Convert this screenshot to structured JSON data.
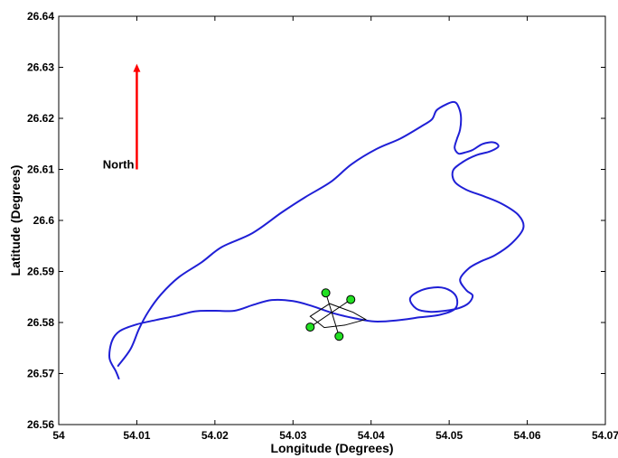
{
  "chart_data": {
    "type": "line",
    "title": "",
    "xlabel": "Longitude (Degrees)",
    "ylabel": "Latitude (Degrees)",
    "xlim": [
      54.0,
      54.07
    ],
    "ylim": [
      26.56,
      26.64
    ],
    "xticks": [
      54.0,
      54.01,
      54.02,
      54.03,
      54.04,
      54.05,
      54.06,
      54.07
    ],
    "yticks": [
      26.56,
      26.57,
      26.58,
      26.59,
      26.6,
      26.61,
      26.62,
      26.63,
      26.64
    ],
    "xtick_labels": [
      "54",
      "54.01",
      "54.02",
      "54.03",
      "54.04",
      "54.05",
      "54.06",
      "54.07"
    ],
    "ytick_labels": [
      "26.56",
      "26.57",
      "26.58",
      "26.59",
      "26.6",
      "26.61",
      "26.62",
      "26.63",
      "26.64"
    ],
    "grid": false,
    "colors": {
      "track": "#1f1fd6",
      "arrow": "#ff0000",
      "marker": "#22e022"
    },
    "series": [
      {
        "points": [
          [
            54.0076,
            26.5715
          ],
          [
            54.0092,
            26.5748
          ],
          [
            54.0103,
            26.5788
          ],
          [
            54.0115,
            26.5822
          ],
          [
            54.0131,
            26.5855
          ],
          [
            54.0154,
            26.5889
          ],
          [
            54.0183,
            26.5918
          ],
          [
            54.0209,
            26.5948
          ],
          [
            54.0248,
            26.5975
          ],
          [
            54.0285,
            26.6015
          ],
          [
            54.0315,
            26.6045
          ],
          [
            54.0348,
            26.6075
          ],
          [
            54.0375,
            26.611
          ],
          [
            54.0407,
            26.614
          ],
          [
            54.0437,
            26.616
          ],
          [
            54.0465,
            26.6185
          ],
          [
            54.0478,
            26.6198
          ],
          [
            54.0484,
            26.6216
          ],
          [
            54.0497,
            26.6228
          ],
          [
            54.0506,
            26.6232
          ],
          [
            54.0511,
            26.6226
          ],
          [
            54.0515,
            26.6205
          ],
          [
            54.0514,
            26.6178
          ],
          [
            54.051,
            26.616
          ],
          [
            54.0507,
            26.6142
          ],
          [
            54.0512,
            26.6131
          ],
          [
            54.052,
            26.6133
          ],
          [
            54.053,
            26.6138
          ],
          [
            54.0543,
            26.615
          ],
          [
            54.0557,
            26.6153
          ],
          [
            54.0563,
            26.6145
          ],
          [
            54.0552,
            26.6135
          ],
          [
            54.0535,
            26.6128
          ],
          [
            54.0518,
            26.6115
          ],
          [
            54.0505,
            26.6098
          ],
          [
            54.0507,
            26.6076
          ],
          [
            54.0522,
            26.606
          ],
          [
            54.0545,
            26.6047
          ],
          [
            54.0567,
            26.6033
          ],
          [
            54.0589,
            26.601
          ],
          [
            54.0595,
            26.5985
          ],
          [
            54.058,
            26.5955
          ],
          [
            54.0559,
            26.5932
          ],
          [
            54.0541,
            26.592
          ],
          [
            54.0525,
            26.5906
          ],
          [
            54.0514,
            26.5884
          ],
          [
            54.0522,
            26.5863
          ],
          [
            54.053,
            26.5853
          ],
          [
            54.0525,
            26.5838
          ],
          [
            54.0512,
            26.5828
          ],
          [
            54.0495,
            26.5823
          ],
          [
            54.0475,
            26.5821
          ],
          [
            54.0458,
            26.5827
          ],
          [
            54.045,
            26.5847
          ],
          [
            54.0464,
            26.5863
          ],
          [
            54.0486,
            26.5869
          ],
          [
            54.0502,
            26.5862
          ],
          [
            54.051,
            26.5846
          ],
          [
            54.0507,
            26.5826
          ],
          [
            54.0488,
            26.5815
          ],
          [
            54.0462,
            26.581
          ],
          [
            54.0432,
            26.5804
          ],
          [
            54.0405,
            26.5802
          ],
          [
            54.038,
            26.5808
          ],
          [
            54.0352,
            26.5818
          ],
          [
            54.0325,
            26.5832
          ],
          [
            54.03,
            26.5842
          ],
          [
            54.0273,
            26.5844
          ],
          [
            54.025,
            26.5835
          ],
          [
            54.0225,
            26.5823
          ],
          [
            54.02,
            26.5823
          ],
          [
            54.0175,
            26.5822
          ],
          [
            54.015,
            26.5813
          ],
          [
            54.0125,
            26.5805
          ],
          [
            54.0099,
            26.5796
          ],
          [
            54.0078,
            26.5783
          ],
          [
            54.0068,
            26.5763
          ],
          [
            54.0065,
            26.573
          ],
          [
            54.0073,
            26.5705
          ],
          [
            54.0077,
            26.569
          ]
        ]
      }
    ],
    "annotations": {
      "north_label": "North",
      "north_arrow": {
        "x": 54.01,
        "y_start": 26.61,
        "y_end": 26.6305
      },
      "vessel_outline": [
        [
          54.0322,
          26.5812
        ],
        [
          54.0347,
          26.5837
        ],
        [
          54.0377,
          26.582
        ],
        [
          54.0393,
          26.5806
        ],
        [
          54.0367,
          26.5795
        ],
        [
          54.034,
          26.579
        ]
      ],
      "markers": [
        {
          "x": 54.0342,
          "y": 26.5858
        },
        {
          "x": 54.0374,
          "y": 26.5845
        },
        {
          "x": 54.0322,
          "y": 26.5791
        },
        {
          "x": 54.0359,
          "y": 26.5773
        }
      ],
      "marker_links": [
        [
          0,
          3
        ],
        [
          1,
          2
        ]
      ]
    }
  }
}
